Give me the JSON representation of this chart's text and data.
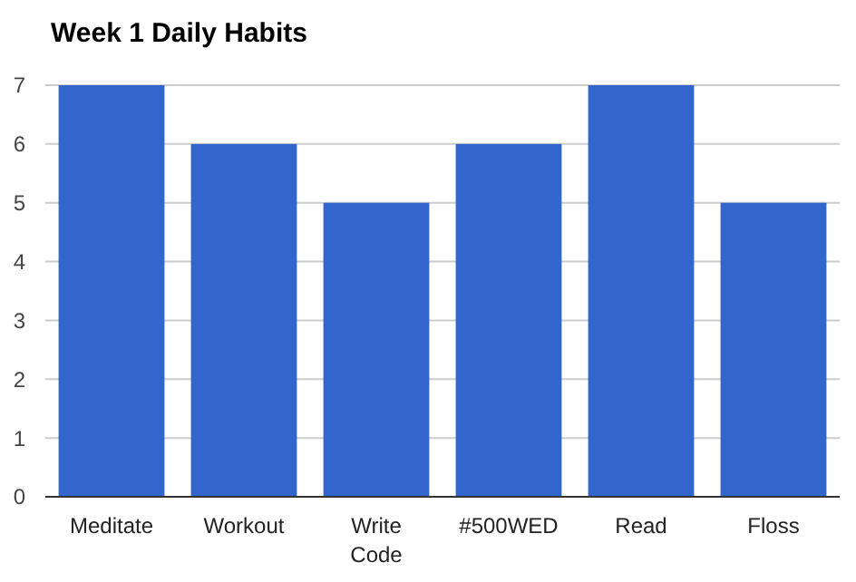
{
  "chart_data": {
    "type": "bar",
    "title": "Week 1 Daily Habits",
    "categories": [
      "Meditate",
      "Workout",
      "Write Code",
      "#500WED",
      "Read",
      "Floss"
    ],
    "values": [
      7,
      6,
      5,
      6,
      7,
      5
    ],
    "color": "#3366cc",
    "ylim": [
      0,
      7
    ],
    "yticks": [
      0,
      1,
      2,
      3,
      4,
      5,
      6,
      7
    ],
    "grid": "y"
  }
}
